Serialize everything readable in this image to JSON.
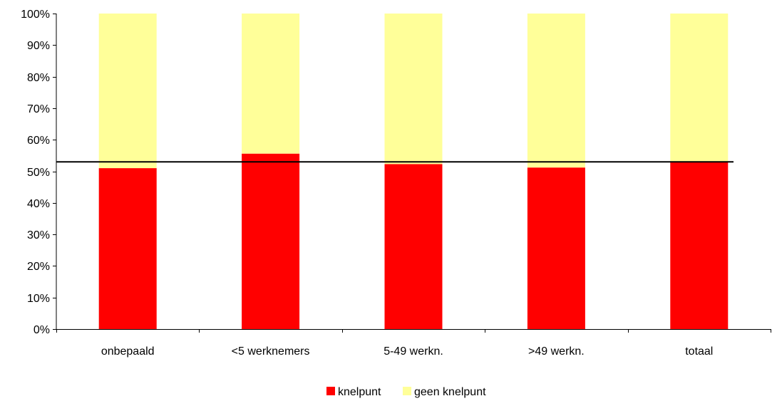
{
  "chart_data": {
    "type": "bar",
    "stacked": true,
    "normalized": true,
    "categories": [
      "onbepaald",
      "<5 werknemers",
      "5-49 werkn.",
      ">49  werkn.",
      "totaal"
    ],
    "series": [
      {
        "name": "knelpunt",
        "values": [
          51,
          55.6,
          52.3,
          51.2,
          53
        ],
        "color": "#ff0000"
      },
      {
        "name": "geen knelpunt",
        "values": [
          49,
          44.4,
          47.7,
          48.8,
          47
        ],
        "color": "#ffff99"
      }
    ],
    "reference_line": {
      "value": 53,
      "color": "#000000"
    },
    "ylim": [
      0,
      100
    ],
    "ytick_labels": [
      "0%",
      "10%",
      "20%",
      "30%",
      "40%",
      "50%",
      "60%",
      "70%",
      "80%",
      "90%",
      "100%"
    ],
    "grid": false,
    "legend_position": "bottom"
  }
}
